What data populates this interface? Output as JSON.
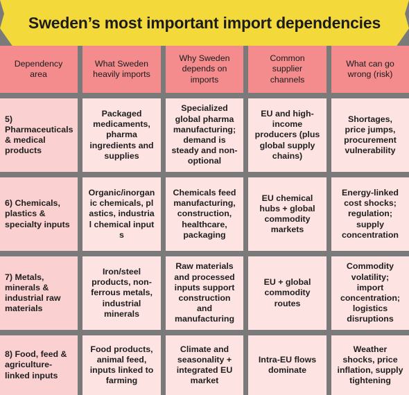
{
  "title": "Sweden’s most important import dependencies",
  "headers": [
    "Dependency area",
    "What Sweden heavily imports",
    "Why Sweden depends on imports",
    "Common supplier channels",
    "What can go wrong (risk)"
  ],
  "rows": [
    {
      "area": "5) Pharmaceuticals & medical products",
      "imports": "Packaged medicaments, pharma ingredients and supplies",
      "why": "Specialized global pharma manufacturing; demand is steady and non-optional",
      "channels": "EU and high-income producers (plus global supply chains)",
      "risk": "Shortages, price jumps, procurement vulnerability"
    },
    {
      "area": "6) Chemicals, plastics & specialty inputs",
      "imports": "Organic/inorganic chemicals, plastics, industrial chemical inputs",
      "why": "Chemicals feed manufacturing, construction, healthcare, packaging",
      "channels": "EU chemical hubs + global commodity markets",
      "risk": "Energy-linked cost shocks; regulation; supply concentration"
    },
    {
      "area": "7) Metals, minerals & industrial raw materials",
      "imports": "Iron/steel products, non-ferrous metals, industrial minerals",
      "why": "Raw materials and processed inputs support construction and manufacturing",
      "channels": "EU + global commodity routes",
      "risk": "Commodity volatility; import concentration; logistics disruptions"
    },
    {
      "area": "8) Food, feed & agriculture-linked inputs",
      "imports": "Food products, animal feed, inputs linked to farming",
      "why": "Climate and seasonality + integrated EU market",
      "channels": "Intra-EU flows dominate",
      "risk": "Weather shocks, price inflation, supply tightening"
    }
  ],
  "colors": {
    "banner": "#f4d93a",
    "header": "#f48c8e",
    "body_cell": "#fde3e2",
    "first_col": "#fad1d0",
    "background": "#7a7a7a"
  }
}
